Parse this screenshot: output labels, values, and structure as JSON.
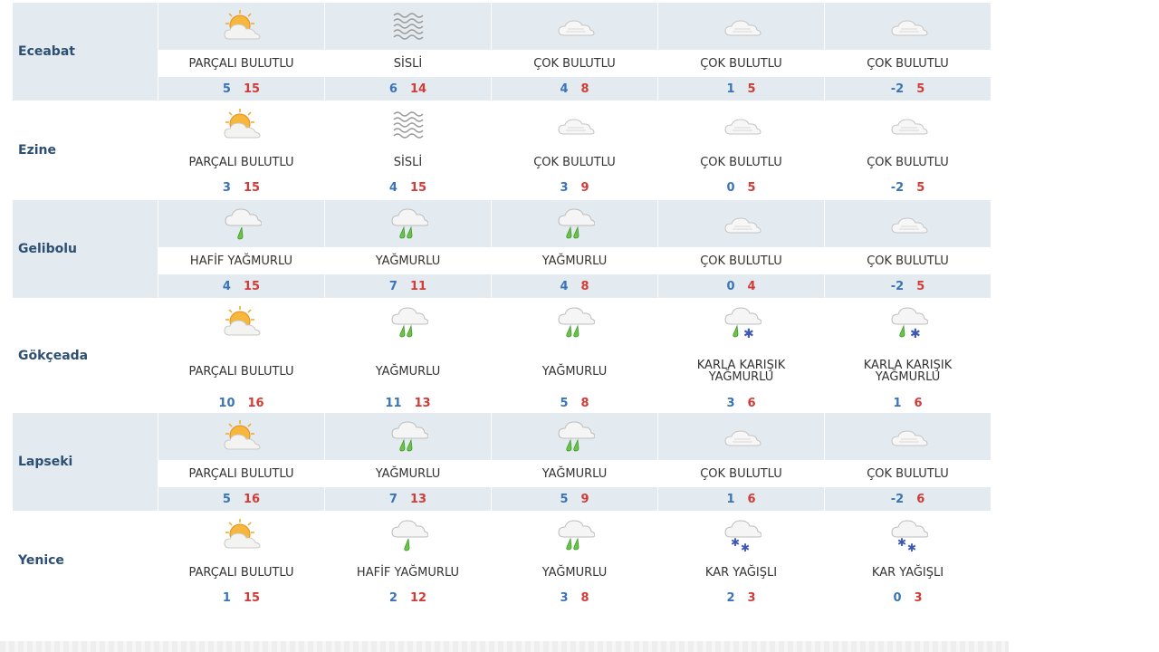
{
  "rows": [
    {
      "city": "Eceabat",
      "days": [
        {
          "icon": "partly-cloudy-sun-icon",
          "desc": "PARÇALI BULUTLU",
          "min": "5",
          "max": "15"
        },
        {
          "icon": "fog-icon",
          "desc": "SİSLİ",
          "min": "6",
          "max": "14"
        },
        {
          "icon": "cloudy-icon",
          "desc": "ÇOK BULUTLU",
          "min": "4",
          "max": "8"
        },
        {
          "icon": "cloudy-icon",
          "desc": "ÇOK BULUTLU",
          "min": "1",
          "max": "5"
        },
        {
          "icon": "cloudy-icon",
          "desc": "ÇOK BULUTLU",
          "min": "-2",
          "max": "5"
        }
      ]
    },
    {
      "city": "Ezine",
      "days": [
        {
          "icon": "partly-cloudy-sun-icon",
          "desc": "PARÇALI BULUTLU",
          "min": "3",
          "max": "15"
        },
        {
          "icon": "fog-icon",
          "desc": "SİSLİ",
          "min": "4",
          "max": "15"
        },
        {
          "icon": "cloudy-icon",
          "desc": "ÇOK BULUTLU",
          "min": "3",
          "max": "9"
        },
        {
          "icon": "cloudy-icon",
          "desc": "ÇOK BULUTLU",
          "min": "0",
          "max": "5"
        },
        {
          "icon": "cloudy-icon",
          "desc": "ÇOK BULUTLU",
          "min": "-2",
          "max": "5"
        }
      ]
    },
    {
      "city": "Gelibolu",
      "days": [
        {
          "icon": "light-rain-icon",
          "desc": "HAFİF YAĞMURLU",
          "min": "4",
          "max": "15"
        },
        {
          "icon": "rain-icon",
          "desc": "YAĞMURLU",
          "min": "7",
          "max": "11"
        },
        {
          "icon": "rain-icon",
          "desc": "YAĞMURLU",
          "min": "4",
          "max": "8"
        },
        {
          "icon": "cloudy-icon",
          "desc": "ÇOK BULUTLU",
          "min": "0",
          "max": "4"
        },
        {
          "icon": "cloudy-icon",
          "desc": "ÇOK BULUTLU",
          "min": "-2",
          "max": "5"
        }
      ]
    },
    {
      "city": "Gökçeada",
      "days": [
        {
          "icon": "partly-cloudy-sun-icon",
          "desc": "PARÇALI BULUTLU",
          "min": "10",
          "max": "16"
        },
        {
          "icon": "rain-icon",
          "desc": "YAĞMURLU",
          "min": "11",
          "max": "13"
        },
        {
          "icon": "rain-icon",
          "desc": "YAĞMURLU",
          "min": "5",
          "max": "8"
        },
        {
          "icon": "sleet-icon",
          "desc": "KARLA KARIŞIK YAĞMURLU",
          "min": "3",
          "max": "6"
        },
        {
          "icon": "sleet-icon",
          "desc": "KARLA KARIŞIK YAĞMURLU",
          "min": "1",
          "max": "6"
        }
      ]
    },
    {
      "city": "Lapseki",
      "days": [
        {
          "icon": "partly-cloudy-sun-icon",
          "desc": "PARÇALI BULUTLU",
          "min": "5",
          "max": "16"
        },
        {
          "icon": "rain-icon",
          "desc": "YAĞMURLU",
          "min": "7",
          "max": "13"
        },
        {
          "icon": "rain-icon",
          "desc": "YAĞMURLU",
          "min": "5",
          "max": "9"
        },
        {
          "icon": "cloudy-icon",
          "desc": "ÇOK BULUTLU",
          "min": "1",
          "max": "6"
        },
        {
          "icon": "cloudy-icon",
          "desc": "ÇOK BULUTLU",
          "min": "-2",
          "max": "6"
        }
      ]
    },
    {
      "city": "Yenice",
      "days": [
        {
          "icon": "partly-cloudy-sun-icon",
          "desc": "PARÇALI BULUTLU",
          "min": "1",
          "max": "15"
        },
        {
          "icon": "light-rain-icon",
          "desc": "HAFİF YAĞMURLU",
          "min": "2",
          "max": "12"
        },
        {
          "icon": "rain-icon",
          "desc": "YAĞMURLU",
          "min": "3",
          "max": "8"
        },
        {
          "icon": "snow-icon",
          "desc": "KAR YAĞIŞLI",
          "min": "2",
          "max": "3"
        },
        {
          "icon": "snow-icon",
          "desc": "KAR YAĞIŞLI",
          "min": "0",
          "max": "3"
        }
      ]
    }
  ],
  "colors": {
    "shaded_row": "#e3ebf1",
    "city_text": "#2c4f72",
    "min_temp": "#3a74b8",
    "max_temp": "#d33b36"
  }
}
